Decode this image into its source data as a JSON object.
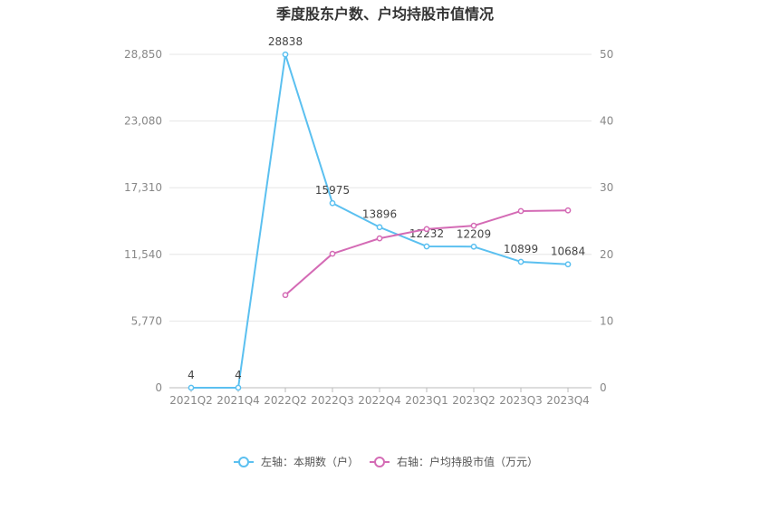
{
  "chart_data": {
    "type": "line",
    "title": "季度股东户数、户均持股市值情况",
    "categories": [
      "2021Q2",
      "2021Q4",
      "2022Q2",
      "2022Q3",
      "2022Q4",
      "2023Q1",
      "2023Q2",
      "2023Q3",
      "2023Q4"
    ],
    "y_left": {
      "ylim": [
        0,
        28850
      ],
      "ticks": [
        0,
        5770,
        11540,
        17310,
        23080,
        28850
      ],
      "tick_labels": [
        "0",
        "5,770",
        "11,540",
        "17,310",
        "23,080",
        "28,850"
      ]
    },
    "y_right": {
      "ylim": [
        0,
        50
      ],
      "ticks": [
        0,
        10,
        20,
        30,
        40,
        50
      ],
      "tick_labels": [
        "0",
        "10",
        "20",
        "30",
        "40",
        "50"
      ]
    },
    "series": [
      {
        "name": "左轴：本期数（户）",
        "axis": "left",
        "color": "#5bc0f0",
        "values": [
          4,
          4,
          28838,
          15975,
          13896,
          12232,
          12209,
          10899,
          10684
        ],
        "labels": [
          "4",
          "4",
          "28838",
          "15975",
          "13896",
          "12232",
          "12209",
          "10899",
          "10684"
        ]
      },
      {
        "name": "右轴：户均持股市值（万元）",
        "axis": "right",
        "color": "#d46bb5",
        "values": [
          null,
          null,
          13.9,
          20.1,
          22.4,
          23.8,
          24.3,
          26.5,
          26.6
        ]
      }
    ],
    "grid": true,
    "legend_position": "bottom-center"
  }
}
